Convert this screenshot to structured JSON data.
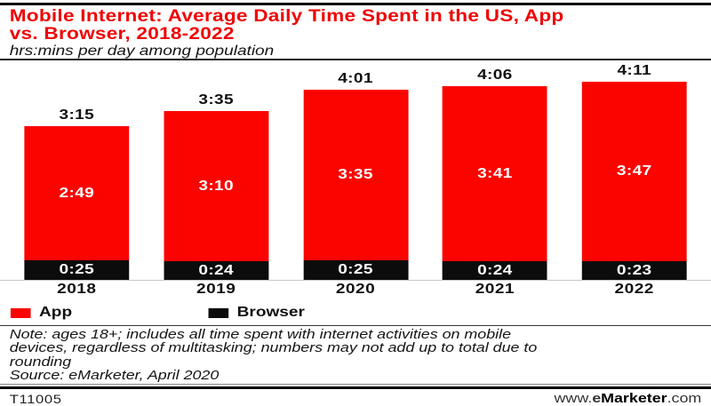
{
  "header": {
    "title": "Mobile Internet: Average Daily Time Spent in the US, App\nvs. Browser, 2018-2022",
    "subtitle": "hrs:mins per day among population"
  },
  "chart_data": {
    "type": "bar",
    "stacked": true,
    "orientation": "vertical",
    "categories": [
      "2018",
      "2019",
      "2020",
      "2021",
      "2022"
    ],
    "series": [
      {
        "name": "App",
        "color": "#fb0400",
        "values": [
          "2:49",
          "3:10",
          "3:35",
          "3:41",
          "3:47"
        ]
      },
      {
        "name": "Browser",
        "color": "#0c0c0c",
        "values": [
          "0:25",
          "0:24",
          "0:25",
          "0:24",
          "0:23"
        ]
      }
    ],
    "totals": [
      "3:15",
      "3:35",
      "4:01",
      "4:06",
      "4:11"
    ],
    "value_format": "h:mm",
    "unit": "hrs:mins per day",
    "y_axis_visible": false,
    "grid": false,
    "legend_position": "bottom",
    "data_labels": "inside-segments-and-total-above"
  },
  "legend": {
    "items": [
      {
        "label": "App",
        "color": "#fb0400"
      },
      {
        "label": "Browser",
        "color": "#0c0c0c"
      }
    ]
  },
  "note": "Note: ages 18+; includes all time spent with internet activities on mobile\ndevices, regardless of multitasking; numbers may not add up to total due to\nrounding",
  "source": "Source: eMarketer, April 2020",
  "footer": {
    "chart_id": "T11005",
    "url": {
      "www": "www.",
      "e": "e",
      "marketer": "Marketer",
      "com": ".com"
    }
  },
  "colors": {
    "title_red": "#f00505",
    "bar_red": "#fb0400",
    "bar_black": "#0c0c0c",
    "baseline_gray": "#c8c8c8"
  }
}
